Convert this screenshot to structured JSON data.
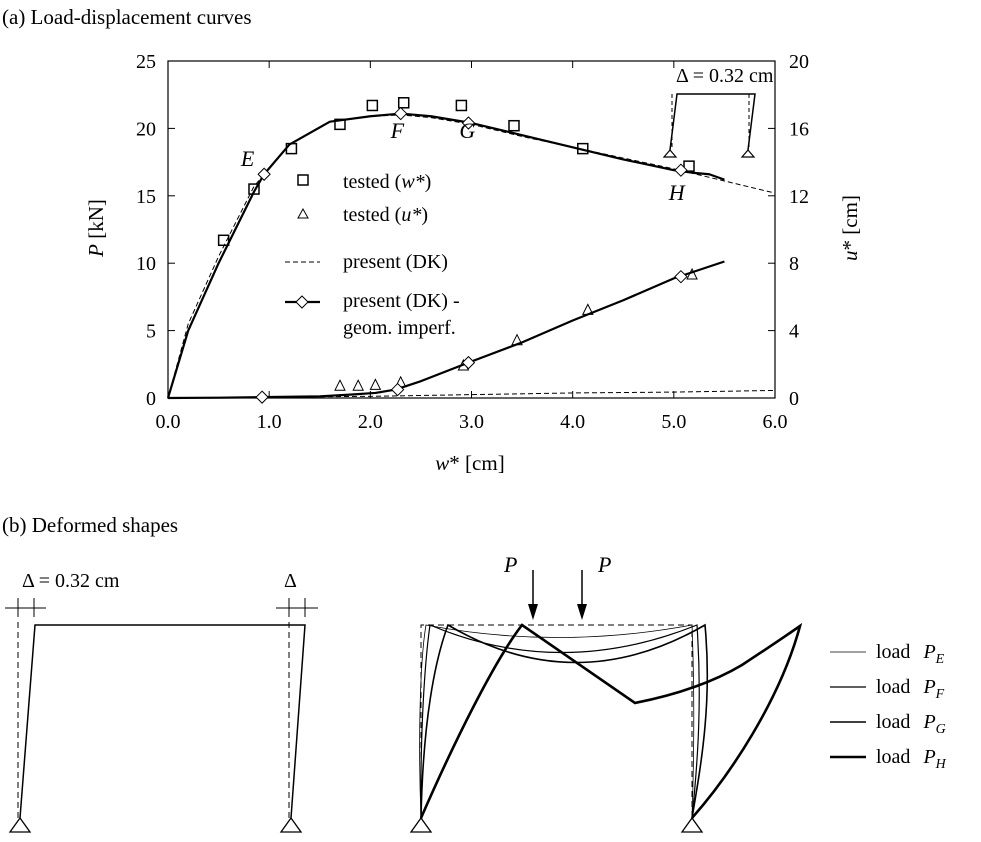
{
  "chart_data": [
    {
      "type": "line",
      "caption": "(a)  Load-displacement curves",
      "xlabel": "w* [cm]",
      "ylabel": "P [kN]",
      "y2label": "u* [cm]",
      "xlim": [
        0,
        6
      ],
      "ylim": [
        0,
        25
      ],
      "y2lim": [
        0,
        20
      ],
      "xticks": [
        0,
        1,
        2,
        3,
        4,
        5,
        6
      ],
      "xtick_labels": [
        "0.0",
        "1.0",
        "2.0",
        "3.0",
        "4.0",
        "5.0",
        "6.0"
      ],
      "yticks": [
        0,
        5,
        10,
        15,
        20,
        25
      ],
      "ytick_labels": [
        "0",
        "5",
        "10",
        "15",
        "20",
        "25"
      ],
      "y2ticks": [
        0,
        4,
        8,
        12,
        16,
        20
      ],
      "y2tick_labels": [
        "0",
        "4",
        "8",
        "12",
        "16",
        "20"
      ],
      "grid": false,
      "legend_position": "center",
      "legend": [
        {
          "prefix": "tested (",
          "var": "w*",
          "suffix": ")",
          "marker": "square"
        },
        {
          "prefix": "tested (",
          "var": "u*",
          "suffix": ")",
          "marker": "triangle"
        },
        {
          "prefix": "present (DK)",
          "var": "",
          "suffix": "",
          "marker": "dashed"
        },
        {
          "prefix": "present (DK) -",
          "var": "",
          "suffix": "",
          "marker": "line-diamond",
          "second_line": "geom. imperf."
        }
      ],
      "point_labels": [
        {
          "text": "E",
          "x": 0.72,
          "y": 17.2
        },
        {
          "text": "F",
          "x": 2.2,
          "y": 19.3
        },
        {
          "text": "G",
          "x": 2.88,
          "y": 19.3
        },
        {
          "text": "H",
          "x": 4.95,
          "y": 14.7
        }
      ],
      "inset_label": "Δ = 0.32 cm",
      "series": [
        {
          "name": "tested (w*)",
          "axis": "left",
          "style": "markers-square",
          "x": [
            0.55,
            0.85,
            1.22,
            1.7,
            2.02,
            2.33,
            2.9,
            3.42,
            4.1,
            5.15
          ],
          "y": [
            11.7,
            15.5,
            18.5,
            20.3,
            21.7,
            21.9,
            21.7,
            20.2,
            18.5,
            17.2
          ]
        },
        {
          "name": "tested (u*)",
          "axis": "right",
          "style": "markers-triangle",
          "x": [
            1.7,
            1.88,
            2.05,
            2.3,
            2.92,
            3.45,
            4.15,
            5.18
          ],
          "y": [
            0.7,
            0.7,
            0.75,
            0.9,
            1.9,
            3.4,
            5.2,
            7.3
          ]
        },
        {
          "name": "present (DK)",
          "axis": "left",
          "style": "dashed",
          "x": [
            0,
            0.2,
            0.5,
            0.85,
            1.2,
            1.6,
            2.0,
            2.3,
            2.6,
            3.0,
            3.5,
            4.0,
            4.5,
            5.0,
            5.5,
            6.0
          ],
          "y": [
            0,
            5.5,
            10.5,
            15.7,
            18.8,
            20.5,
            20.9,
            21.0,
            20.8,
            20.3,
            19.4,
            18.6,
            17.8,
            17.0,
            16.1,
            15.2
          ]
        },
        {
          "name": "present (DK) u*",
          "axis": "right",
          "style": "dashed",
          "x": [
            0,
            1.0,
            2.0,
            3.0,
            4.0,
            5.0,
            6.0
          ],
          "y": [
            0,
            0.05,
            0.1,
            0.2,
            0.3,
            0.35,
            0.45
          ]
        },
        {
          "name": "present (DK) - geom. imperf.",
          "axis": "left",
          "style": "solid-diamond",
          "x": [
            0,
            0.2,
            0.5,
            0.85,
            0.95,
            1.2,
            1.6,
            2.0,
            2.3,
            2.6,
            3.0,
            3.5,
            4.0,
            4.5,
            5.0,
            5.2,
            5.35,
            5.5
          ],
          "y": [
            0,
            5.0,
            10.0,
            15.3,
            16.6,
            18.8,
            20.5,
            20.9,
            21.1,
            20.9,
            20.4,
            19.5,
            18.6,
            17.7,
            16.9,
            16.7,
            16.6,
            16.2
          ],
          "marker_x": [
            0.95,
            2.3,
            2.97,
            5.07
          ],
          "marker_y": [
            16.6,
            21.1,
            20.4,
            16.9
          ]
        },
        {
          "name": "present (DK) - geom. imperf. u*",
          "axis": "right",
          "style": "solid-diamond",
          "x": [
            0,
            0.5,
            0.93,
            1.5,
            1.8,
            2.05,
            2.25,
            2.5,
            2.97,
            3.5,
            4.0,
            4.5,
            5.0,
            5.2,
            5.5
          ],
          "y": [
            0,
            0.02,
            0.05,
            0.1,
            0.2,
            0.3,
            0.5,
            1.0,
            2.1,
            3.3,
            4.6,
            5.8,
            7.1,
            7.5,
            8.1
          ],
          "marker_x": [
            0.93,
            2.27,
            2.97,
            5.07
          ],
          "marker_y": [
            0.05,
            0.5,
            2.1,
            7.2
          ]
        }
      ]
    },
    {
      "type": "diagram",
      "caption": "(b)  Deformed shapes",
      "imperfection_label": "Δ = 0.32 cm",
      "delta_label": "Δ",
      "load_label": "P",
      "legend": [
        {
          "label": "load",
          "sym": "P",
          "sub": "E",
          "stroke": 0.8
        },
        {
          "label": "load",
          "sym": "P",
          "sub": "F",
          "stroke": 1.2
        },
        {
          "label": "load",
          "sym": "P",
          "sub": "G",
          "stroke": 1.6
        },
        {
          "label": "load",
          "sym": "P",
          "sub": "H",
          "stroke": 2.6
        }
      ]
    }
  ]
}
